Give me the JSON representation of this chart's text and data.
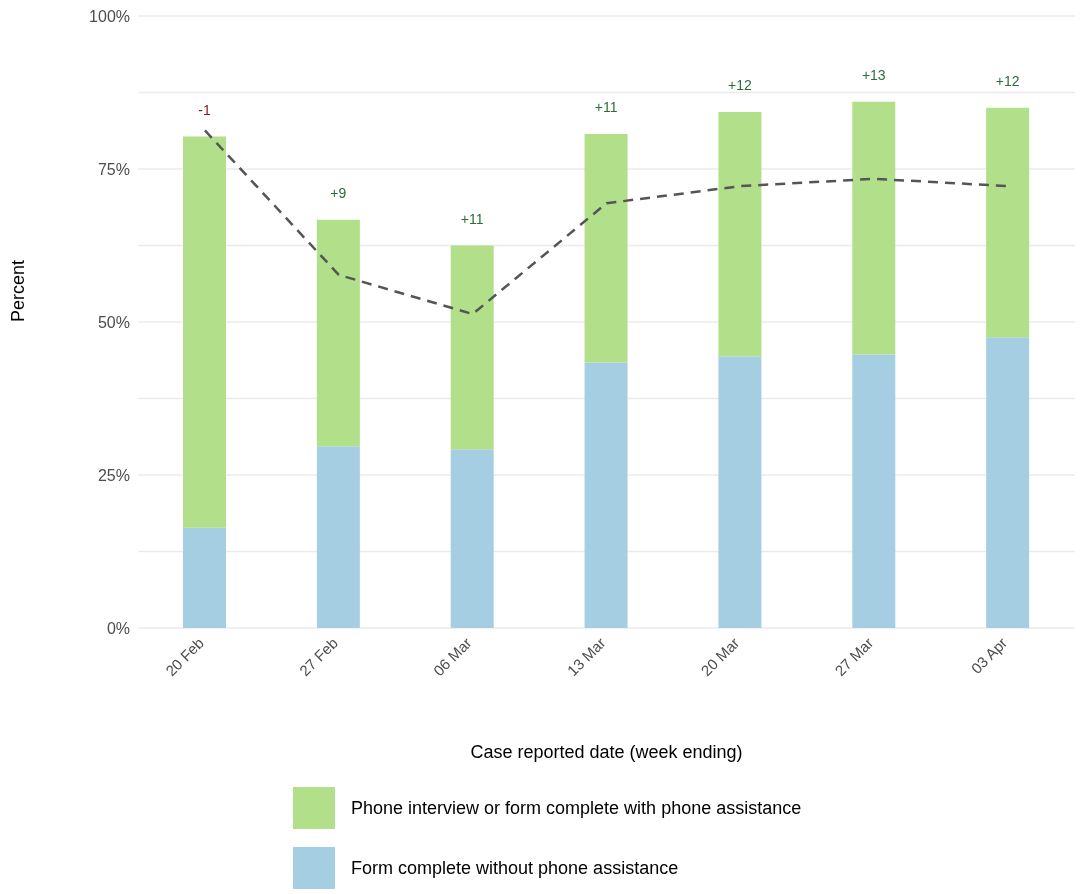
{
  "chart_data": {
    "type": "bar",
    "stacked": true,
    "categories": [
      "20 Feb",
      "27 Feb",
      "06 Mar",
      "13 Mar",
      "20 Mar",
      "27 Mar",
      "03 Apr"
    ],
    "xlabel": "Case reported date (week ending)",
    "ylabel": "Percent",
    "series": [
      {
        "name": "Form complete without phone assistance",
        "color": "#a6cee3",
        "values": [
          16.4,
          29.7,
          29.2,
          43.4,
          44.4,
          44.7,
          47.5
        ]
      },
      {
        "name": "Phone interview or form complete with phone assistance",
        "color": "#b2df8a",
        "values": [
          63.9,
          37.0,
          33.3,
          37.3,
          39.9,
          41.3,
          37.5
        ]
      },
      {
        "type": "line",
        "color": "#555555",
        "line_style": "dashed",
        "marker": "none",
        "values": [
          81.3,
          57.7,
          51.3,
          69.4,
          72.2,
          73.4,
          72.2
        ]
      }
    ],
    "ylim": [
      0,
      100
    ],
    "yticks": [
      {
        "value": 0,
        "label": "0%"
      },
      {
        "value": 12.5,
        "label": null
      },
      {
        "value": 25,
        "label": "25%"
      },
      {
        "value": 37.5,
        "label": null
      },
      {
        "value": 50,
        "label": "50%"
      },
      {
        "value": 62.5,
        "label": null
      },
      {
        "value": 75,
        "label": "75%"
      },
      {
        "value": 87.5,
        "label": null
      },
      {
        "value": 100,
        "label": "100%"
      }
    ],
    "grid": "y",
    "legend": "bottom",
    "annotations": [
      "-1",
      "+9",
      "+11",
      "+11",
      "+12",
      "+13",
      "+12"
    ]
  }
}
